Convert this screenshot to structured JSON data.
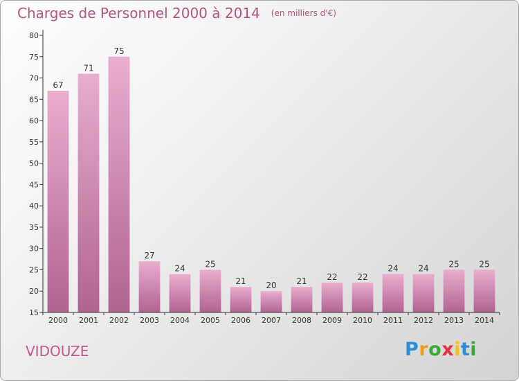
{
  "title": "Charges de Personnel 2000 à 2014",
  "unit": "(en milliers d'€)",
  "commune": "VIDOUZE",
  "logo": {
    "letters": [
      "P",
      "r",
      "o",
      "x",
      "i",
      "t",
      "i"
    ],
    "colors": [
      "#2a8fd6",
      "#f29b1d",
      "#3aa83a",
      "#e2323a",
      "#f2c11d",
      "#2a8fd6",
      "#3aa83a"
    ]
  },
  "colors": {
    "title": "#b0557f",
    "bar_top": "#e9aed0",
    "bar_bottom": "#b0638f"
  },
  "chart_data": {
    "type": "bar",
    "title": "Charges de Personnel 2000 à 2014",
    "categories": [
      "2000",
      "2001",
      "2002",
      "2003",
      "2004",
      "2005",
      "2006",
      "2007",
      "2008",
      "2009",
      "2010",
      "2011",
      "2012",
      "2013",
      "2014"
    ],
    "values": [
      67,
      71,
      75,
      27,
      24,
      25,
      21,
      20,
      21,
      22,
      22,
      24,
      24,
      25,
      25
    ],
    "ylim": [
      15,
      80
    ],
    "yticks": [
      15,
      20,
      25,
      30,
      35,
      40,
      45,
      50,
      55,
      60,
      65,
      70,
      75,
      80
    ],
    "grid": false,
    "data_labels": true
  }
}
